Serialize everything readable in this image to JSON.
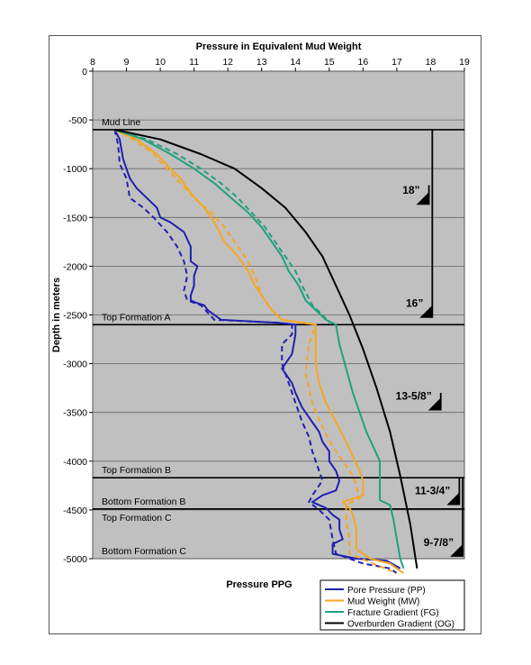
{
  "chart_data": {
    "type": "line",
    "title": "Pressure in Equivalent Mud Weight",
    "xlabel": "Pressure PPG",
    "ylabel": "Depth in meters",
    "xlim": [
      8,
      19
    ],
    "ylim": [
      -5000,
      0
    ],
    "x_ticks": [
      8,
      9,
      10,
      11,
      12,
      13,
      14,
      15,
      16,
      17,
      18,
      19
    ],
    "y_ticks": [
      0,
      -500,
      -1000,
      -1500,
      -2000,
      -2500,
      -3000,
      -3500,
      -4000,
      -4500,
      -5000
    ],
    "grid": "horizontal",
    "legend_position": "bottom-right",
    "series": [
      {
        "name": "Pore Pressure (PP)",
        "color": "#2020b0",
        "style": "solid",
        "points": [
          [
            8.65,
            -600
          ],
          [
            8.8,
            -700
          ],
          [
            8.9,
            -900
          ],
          [
            9.0,
            -1000
          ],
          [
            9.1,
            -1100
          ],
          [
            9.3,
            -1200
          ],
          [
            9.6,
            -1300
          ],
          [
            9.9,
            -1400
          ],
          [
            10.0,
            -1500
          ],
          [
            10.3,
            -1550
          ],
          [
            10.7,
            -1650
          ],
          [
            10.9,
            -1800
          ],
          [
            10.9,
            -1950
          ],
          [
            11.1,
            -2000
          ],
          [
            11.0,
            -2100
          ],
          [
            11.0,
            -2200
          ],
          [
            10.9,
            -2300
          ],
          [
            10.9,
            -2350
          ],
          [
            11.1,
            -2380
          ],
          [
            11.3,
            -2400
          ],
          [
            11.4,
            -2450
          ],
          [
            11.8,
            -2550
          ],
          [
            13.5,
            -2580
          ],
          [
            14.0,
            -2600
          ],
          [
            14.0,
            -2700
          ],
          [
            13.9,
            -2900
          ],
          [
            13.6,
            -3050
          ],
          [
            13.9,
            -3200
          ],
          [
            14.0,
            -3300
          ],
          [
            14.2,
            -3450
          ],
          [
            14.5,
            -3600
          ],
          [
            14.7,
            -3700
          ],
          [
            14.8,
            -3800
          ],
          [
            15.0,
            -3900
          ],
          [
            15.0,
            -4000
          ],
          [
            15.2,
            -4100
          ],
          [
            15.3,
            -4200
          ],
          [
            15.2,
            -4300
          ],
          [
            14.8,
            -4350
          ],
          [
            14.5,
            -4420
          ],
          [
            14.9,
            -4480
          ],
          [
            15.1,
            -4550
          ],
          [
            15.3,
            -4600
          ],
          [
            15.3,
            -4700
          ],
          [
            15.4,
            -4800
          ],
          [
            15.1,
            -4850
          ],
          [
            15.1,
            -4950
          ],
          [
            15.8,
            -5000
          ],
          [
            16.7,
            -5020
          ],
          [
            17.1,
            -5100
          ]
        ]
      },
      {
        "name": "Pore Pressure (PP) dashed",
        "color": "#2020b0",
        "style": "dashed",
        "points": [
          [
            8.65,
            -600
          ],
          [
            8.75,
            -750
          ],
          [
            8.8,
            -950
          ],
          [
            9.0,
            -1100
          ],
          [
            9.1,
            -1300
          ],
          [
            9.5,
            -1400
          ],
          [
            9.8,
            -1500
          ],
          [
            10.2,
            -1650
          ],
          [
            10.5,
            -1800
          ],
          [
            10.7,
            -1950
          ],
          [
            10.8,
            -2100
          ],
          [
            10.7,
            -2250
          ],
          [
            10.8,
            -2350
          ],
          [
            11.2,
            -2400
          ],
          [
            11.6,
            -2550
          ],
          [
            13.5,
            -2580
          ],
          [
            13.9,
            -2600
          ],
          [
            13.9,
            -2700
          ],
          [
            13.6,
            -2800
          ],
          [
            13.6,
            -3000
          ],
          [
            13.8,
            -3200
          ],
          [
            14.0,
            -3400
          ],
          [
            14.2,
            -3600
          ],
          [
            14.4,
            -3750
          ],
          [
            14.5,
            -3900
          ],
          [
            14.6,
            -4000
          ],
          [
            14.7,
            -4100
          ],
          [
            14.8,
            -4200
          ],
          [
            14.5,
            -4350
          ],
          [
            14.4,
            -4420
          ],
          [
            14.7,
            -4500
          ],
          [
            15.0,
            -4600
          ],
          [
            15.1,
            -4800
          ],
          [
            15.2,
            -4950
          ],
          [
            16.0,
            -5050
          ],
          [
            16.8,
            -5100
          ],
          [
            17.0,
            -5150
          ]
        ]
      },
      {
        "name": "Mud Weight (MW)",
        "color": "#f5a623",
        "style": "solid",
        "points": [
          [
            8.65,
            -600
          ],
          [
            9.3,
            -700
          ],
          [
            9.9,
            -850
          ],
          [
            10.3,
            -1000
          ],
          [
            10.6,
            -1100
          ],
          [
            10.9,
            -1250
          ],
          [
            11.3,
            -1400
          ],
          [
            11.6,
            -1550
          ],
          [
            11.9,
            -1750
          ],
          [
            12.3,
            -1900
          ],
          [
            12.6,
            -2050
          ],
          [
            12.8,
            -2200
          ],
          [
            13.1,
            -2350
          ],
          [
            13.3,
            -2450
          ],
          [
            13.6,
            -2550
          ],
          [
            14.6,
            -2600
          ],
          [
            14.6,
            -2700
          ],
          [
            14.6,
            -3000
          ],
          [
            14.7,
            -3200
          ],
          [
            14.9,
            -3400
          ],
          [
            15.2,
            -3600
          ],
          [
            15.5,
            -3800
          ],
          [
            15.7,
            -3950
          ],
          [
            15.9,
            -4100
          ],
          [
            16.0,
            -4200
          ],
          [
            16.0,
            -4350
          ],
          [
            15.4,
            -4420
          ],
          [
            15.6,
            -4480
          ],
          [
            15.7,
            -4550
          ],
          [
            15.8,
            -4700
          ],
          [
            15.8,
            -4900
          ],
          [
            16.2,
            -5000
          ],
          [
            16.8,
            -5050
          ],
          [
            17.2,
            -5150
          ]
        ]
      },
      {
        "name": "Mud Weight (MW) dashed",
        "color": "#f5a623",
        "style": "dashed",
        "points": [
          [
            8.65,
            -600
          ],
          [
            9.2,
            -700
          ],
          [
            9.8,
            -850
          ],
          [
            10.2,
            -1000
          ],
          [
            10.6,
            -1150
          ],
          [
            11.0,
            -1300
          ],
          [
            11.5,
            -1450
          ],
          [
            11.9,
            -1600
          ],
          [
            12.3,
            -1800
          ],
          [
            12.6,
            -1950
          ],
          [
            12.8,
            -2100
          ],
          [
            13.0,
            -2300
          ],
          [
            13.3,
            -2450
          ],
          [
            13.6,
            -2550
          ],
          [
            14.6,
            -2600
          ],
          [
            14.4,
            -2800
          ],
          [
            14.3,
            -3100
          ],
          [
            14.5,
            -3400
          ],
          [
            14.8,
            -3650
          ],
          [
            15.1,
            -3850
          ],
          [
            15.4,
            -4000
          ],
          [
            15.7,
            -4150
          ],
          [
            15.8,
            -4250
          ],
          [
            15.9,
            -4380
          ],
          [
            15.5,
            -4450
          ],
          [
            15.5,
            -4600
          ],
          [
            15.6,
            -4800
          ],
          [
            15.6,
            -4950
          ],
          [
            16.3,
            -5050
          ],
          [
            17.0,
            -5150
          ]
        ]
      },
      {
        "name": "Fracture Gradient (FG)",
        "color": "#21a07e",
        "style": "solid",
        "points": [
          [
            8.65,
            -600
          ],
          [
            9.5,
            -700
          ],
          [
            10.3,
            -850
          ],
          [
            11.0,
            -1000
          ],
          [
            11.6,
            -1150
          ],
          [
            12.1,
            -1300
          ],
          [
            12.6,
            -1450
          ],
          [
            13.0,
            -1600
          ],
          [
            13.3,
            -1750
          ],
          [
            13.6,
            -1900
          ],
          [
            13.8,
            -2050
          ],
          [
            14.1,
            -2200
          ],
          [
            14.3,
            -2350
          ],
          [
            14.6,
            -2450
          ],
          [
            14.9,
            -2550
          ],
          [
            15.2,
            -2600
          ],
          [
            15.3,
            -2800
          ],
          [
            15.5,
            -3050
          ],
          [
            15.7,
            -3300
          ],
          [
            15.9,
            -3500
          ],
          [
            16.1,
            -3700
          ],
          [
            16.3,
            -3850
          ],
          [
            16.5,
            -4000
          ],
          [
            16.5,
            -4400
          ],
          [
            16.8,
            -4450
          ],
          [
            16.9,
            -4600
          ],
          [
            17.0,
            -4800
          ],
          [
            17.1,
            -5000
          ],
          [
            17.2,
            -5100
          ]
        ]
      },
      {
        "name": "Fracture Gradient (FG) dashed",
        "color": "#21a07e",
        "style": "dashed",
        "points": [
          [
            8.65,
            -600
          ],
          [
            9.6,
            -700
          ],
          [
            10.5,
            -850
          ],
          [
            11.2,
            -1000
          ],
          [
            11.8,
            -1150
          ],
          [
            12.3,
            -1300
          ],
          [
            12.7,
            -1450
          ],
          [
            13.1,
            -1600
          ],
          [
            13.4,
            -1750
          ],
          [
            13.7,
            -1900
          ],
          [
            14.0,
            -2050
          ],
          [
            14.2,
            -2200
          ],
          [
            14.5,
            -2400
          ],
          [
            14.8,
            -2500
          ],
          [
            15.0,
            -2580
          ]
        ]
      },
      {
        "name": "Overburden Gradient (OG)",
        "color": "#000000",
        "style": "solid",
        "points": [
          [
            8.65,
            -600
          ],
          [
            10.0,
            -700
          ],
          [
            11.2,
            -850
          ],
          [
            12.2,
            -1000
          ],
          [
            13.0,
            -1200
          ],
          [
            13.7,
            -1400
          ],
          [
            14.3,
            -1650
          ],
          [
            14.8,
            -1900
          ],
          [
            15.2,
            -2200
          ],
          [
            15.6,
            -2500
          ],
          [
            16.0,
            -2850
          ],
          [
            16.4,
            -3250
          ],
          [
            16.8,
            -3700
          ],
          [
            17.1,
            -4150
          ],
          [
            17.4,
            -4650
          ],
          [
            17.6,
            -5100
          ]
        ]
      }
    ],
    "formation_tops": [
      {
        "label": "Mud Line",
        "depth": -600
      },
      {
        "label": "Top Formation A",
        "depth": -2600
      },
      {
        "label": "Top Formation B",
        "depth": -4170
      },
      {
        "label": "Bottom Formation B",
        "depth": -4490
      },
      {
        "label": "Top Formation C",
        "depth": -4490
      },
      {
        "label": "Bottom Formation C",
        "depth": -5000
      }
    ],
    "casings": [
      {
        "label": "18”",
        "shoe_depth": -1370,
        "x": 17.95
      },
      {
        "label": "16”",
        "shoe_depth": -2530,
        "x": 18.05
      },
      {
        "label": "13-5/8”",
        "shoe_depth": -3480,
        "x": 18.3
      },
      {
        "label": "11-3/4”",
        "shoe_depth": -4450,
        "x": 18.85
      },
      {
        "label": "9-7/8”",
        "shoe_depth": -4980,
        "x": 18.95
      }
    ],
    "legend": [
      {
        "label": "Pore Pressure (PP)",
        "color": "#2020b0"
      },
      {
        "label": "Mud Weight (MW)",
        "color": "#f5a623"
      },
      {
        "label": "Fracture Gradient (FG)",
        "color": "#21a07e"
      },
      {
        "label": "Overburden Gradient (OG)",
        "color": "#000000"
      }
    ]
  }
}
